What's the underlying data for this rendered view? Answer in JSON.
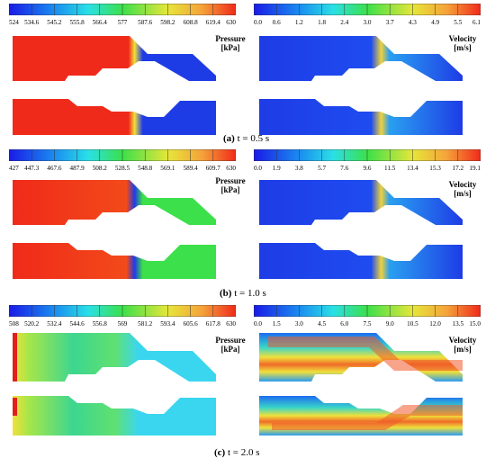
{
  "panels": [
    {
      "caption_letter": "(a)",
      "caption_text": "t = 0.5 s",
      "pressure": {
        "label_line1": "Pressure",
        "label_line2": "[kPa]",
        "ticks": [
          "524",
          "534.6",
          "545.2",
          "555.8",
          "566.4",
          "577",
          "587.6",
          "598.2",
          "608.8",
          "619.4",
          "630"
        ]
      },
      "velocity": {
        "label_line1": "Velocity",
        "label_line2": "[m/s]",
        "ticks": [
          "0.0",
          "0.6",
          "1.2",
          "1.8",
          "2.4",
          "3.0",
          "3.7",
          "4.3",
          "4.9",
          "5.5",
          "6.1"
        ]
      }
    },
    {
      "caption_letter": "(b)",
      "caption_text": "t = 1.0 s",
      "pressure": {
        "label_line1": "Pressure",
        "label_line2": "[kPa]",
        "ticks": [
          "427",
          "447.3",
          "467.6",
          "487.9",
          "508.2",
          "528.5",
          "548.8",
          "569.1",
          "589.4",
          "609.7",
          "630"
        ]
      },
      "velocity": {
        "label_line1": "Velocity",
        "label_line2": "[m/s]",
        "ticks": [
          "0.0",
          "1.9",
          "3.8",
          "5.7",
          "7.6",
          "9.6",
          "11.5",
          "13.4",
          "15.3",
          "17.2",
          "19.1"
        ]
      }
    },
    {
      "caption_letter": "(c)",
      "caption_text": "t = 2.0 s",
      "pressure": {
        "label_line1": "Pressure",
        "label_line2": "[kPa]",
        "ticks": [
          "508",
          "520.2",
          "532.4",
          "544.6",
          "556.8",
          "569",
          "581.2",
          "593.4",
          "605.6",
          "617.8",
          "630"
        ]
      },
      "velocity": {
        "label_line1": "Velocity",
        "label_line2": "[m/s]",
        "ticks": [
          "0.0",
          "1.5",
          "3.0",
          "4.5",
          "6.0",
          "7.5",
          "9.0",
          "10.5",
          "12.0",
          "13.5",
          "15.0"
        ]
      }
    }
  ],
  "colors": {
    "blue": "#1a3cf0",
    "cyan": "#3ad6f0",
    "green": "#3ce04a",
    "yellow": "#f2e23a",
    "orange": "#f5a33a",
    "red": "#f02a1a"
  }
}
